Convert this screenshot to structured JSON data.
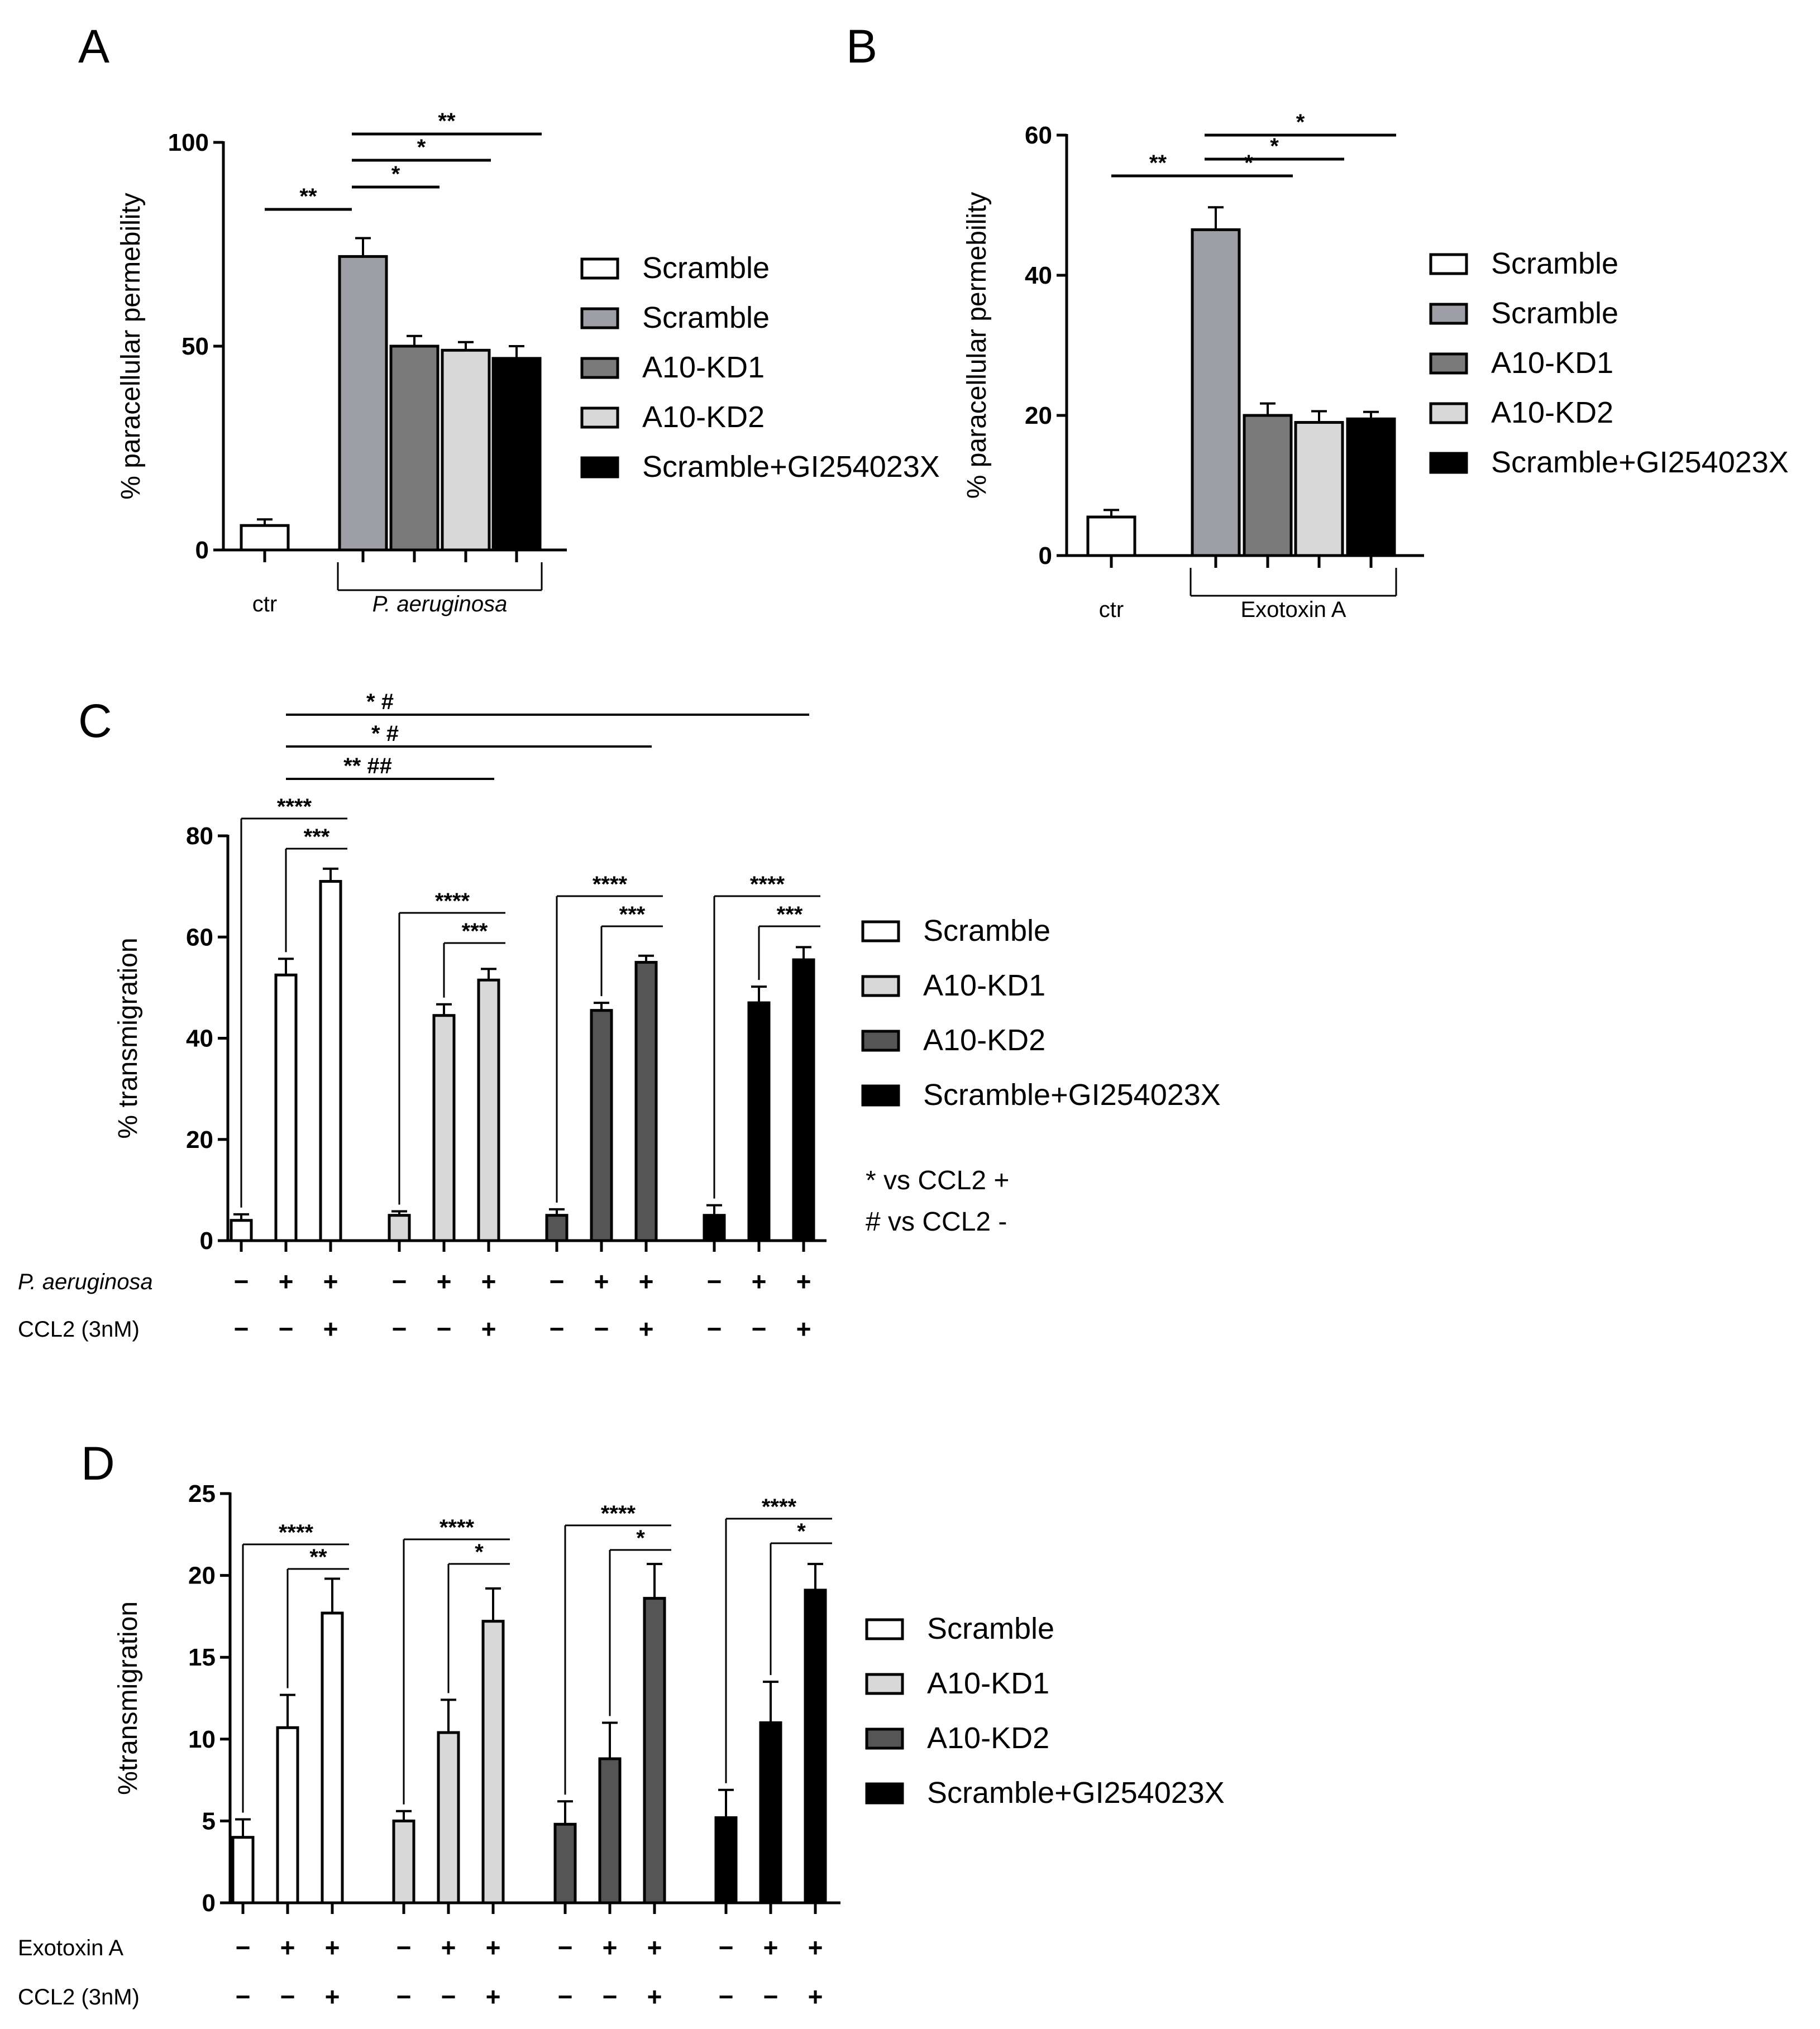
{
  "colors": {
    "scramble_ctrl": "#ffffff",
    "scramble": "#9e9ea6",
    "kd1": "#7a7a7a",
    "kd2": "#d8d8d8",
    "gi": "#000000",
    "kd1_c": "#d8d8d8",
    "kd2_c": "#555555"
  },
  "chart_data": [
    {
      "panel": "A",
      "type": "bar",
      "ylabel": "% paracellular permebility",
      "ylim": [
        0,
        100
      ],
      "yticks": [
        0,
        50,
        100
      ],
      "groups": [
        {
          "label": "ctr",
          "italic": false
        },
        {
          "label": "P. aeruginosa",
          "italic": true
        }
      ],
      "bars": [
        {
          "series": "Scramble",
          "group": 0,
          "value": 6,
          "error": 1.5,
          "color": "#ffffff"
        },
        {
          "series": "Scramble",
          "group": 1,
          "value": 72,
          "error": 4.5,
          "color": "#9e9ea6"
        },
        {
          "series": "A10-KD1",
          "group": 1,
          "value": 50,
          "error": 2.5,
          "color": "#7a7a7a"
        },
        {
          "series": "A10-KD2",
          "group": 1,
          "value": 49,
          "error": 2,
          "color": "#d8d8d8"
        },
        {
          "series": "Scramble+GI254023X",
          "group": 1,
          "value": 47,
          "error": 3,
          "color": "#000000"
        }
      ],
      "legend": [
        "Scramble",
        "Scramble",
        "A10-KD1",
        "A10-KD2",
        "Scramble+GI254023X"
      ],
      "significance": [
        {
          "from": 0,
          "to": 1,
          "label": "**"
        },
        {
          "from": 1,
          "to": 2,
          "label": "*"
        },
        {
          "from": 1,
          "to": 3,
          "label": "*"
        },
        {
          "from": 1,
          "to": 4,
          "label": "**"
        }
      ]
    },
    {
      "panel": "B",
      "type": "bar",
      "ylabel": "% paracellular permebility",
      "ylim": [
        0,
        60
      ],
      "yticks": [
        0,
        20,
        40,
        60
      ],
      "groups": [
        {
          "label": "ctr",
          "italic": false
        },
        {
          "label": "Exotoxin A",
          "italic": false
        }
      ],
      "bars": [
        {
          "series": "Scramble",
          "group": 0,
          "value": 5.5,
          "error": 1,
          "color": "#ffffff"
        },
        {
          "series": "Scramble",
          "group": 1,
          "value": 46.5,
          "error": 3.2,
          "color": "#9e9ea6"
        },
        {
          "series": "A10-KD1",
          "group": 1,
          "value": 20,
          "error": 1.7,
          "color": "#7a7a7a"
        },
        {
          "series": "A10-KD2",
          "group": 1,
          "value": 19,
          "error": 1.6,
          "color": "#d8d8d8"
        },
        {
          "series": "Scramble+GI254023X",
          "group": 1,
          "value": 19.5,
          "error": 1,
          "color": "#000000"
        }
      ],
      "legend": [
        "Scramble",
        "Scramble",
        "A10-KD1",
        "A10-KD2",
        "Scramble+GI254023X"
      ],
      "significance": [
        {
          "from": 0,
          "to": 1,
          "label": "**"
        },
        {
          "from": 1,
          "to": 2,
          "label": "*"
        },
        {
          "from": 1,
          "to": 3,
          "label": "*"
        },
        {
          "from": 1,
          "to": 4,
          "label": "*"
        }
      ]
    },
    {
      "panel": "C",
      "type": "bar",
      "ylabel": "%  transmigration",
      "ylim": [
        0,
        80
      ],
      "yticks": [
        0,
        20,
        40,
        60,
        80
      ],
      "series": [
        {
          "name": "Scramble",
          "color": "#ffffff",
          "values": [
            4,
            52.5,
            71
          ],
          "errors": [
            1.2,
            3.2,
            2.5
          ]
        },
        {
          "name": "A10-KD1",
          "color": "#d8d8d8",
          "values": [
            5,
            44.5,
            51.5
          ],
          "errors": [
            0.8,
            2.2,
            2.2
          ]
        },
        {
          "name": "A10-KD2",
          "color": "#555555",
          "values": [
            5,
            45.5,
            55
          ],
          "errors": [
            1.2,
            1.5,
            1.3
          ]
        },
        {
          "name": "Scramble+GI254023X",
          "color": "#000000",
          "values": [
            5,
            47,
            55.5
          ],
          "errors": [
            2,
            3.2,
            2.5
          ]
        }
      ],
      "conditions": [
        {
          "label": "P. aeruginosa",
          "italic": true,
          "signs": [
            "−",
            "+",
            "+"
          ]
        },
        {
          "label": "CCL2 (3nM)",
          "italic": false,
          "signs": [
            "−",
            "−",
            "+"
          ]
        }
      ],
      "notes": [
        "* vs CCL2 +",
        "# vs CCL2 -"
      ],
      "group_brackets": [
        {
          "label": "****",
          "from": 0,
          "to": 2
        },
        {
          "label": "***",
          "from": 1,
          "to": 2
        }
      ],
      "cross_brackets": [
        {
          "label": "** ##",
          "to_group": 1
        },
        {
          "label": "* #",
          "to_group": 2
        },
        {
          "label": "* #",
          "to_group": 3
        }
      ]
    },
    {
      "panel": "D",
      "type": "bar",
      "ylabel": "%transmigration",
      "ylim": [
        0,
        25
      ],
      "yticks": [
        0,
        5,
        10,
        15,
        20,
        25
      ],
      "series": [
        {
          "name": "Scramble",
          "color": "#ffffff",
          "values": [
            4,
            10.7,
            17.7
          ],
          "errors": [
            1.1,
            2,
            2.1
          ]
        },
        {
          "name": "A10-KD1",
          "color": "#d8d8d8",
          "values": [
            5,
            10.4,
            17.2
          ],
          "errors": [
            0.6,
            2,
            2
          ]
        },
        {
          "name": "A10-KD2",
          "color": "#555555",
          "values": [
            4.8,
            8.8,
            18.6
          ],
          "errors": [
            1.4,
            2.2,
            2.1
          ]
        },
        {
          "name": "Scramble+GI254023X",
          "color": "#000000",
          "values": [
            5.2,
            11,
            19.1
          ],
          "errors": [
            1.7,
            2.5,
            1.6
          ]
        }
      ],
      "conditions": [
        {
          "label": "Exotoxin A",
          "italic": false,
          "signs": [
            "−",
            "+",
            "+"
          ]
        },
        {
          "label": "CCL2 (3nM)",
          "italic": false,
          "signs": [
            "−",
            "−",
            "+"
          ]
        }
      ],
      "group_brackets_by_series": [
        [
          {
            "label": "****",
            "from": 0,
            "to": 2
          },
          {
            "label": "**",
            "from": 1,
            "to": 2
          }
        ],
        [
          {
            "label": "****",
            "from": 0,
            "to": 2
          },
          {
            "label": "*",
            "from": 1,
            "to": 2
          }
        ],
        [
          {
            "label": "****",
            "from": 0,
            "to": 2
          },
          {
            "label": "*",
            "from": 1,
            "to": 2
          }
        ],
        [
          {
            "label": "****",
            "from": 0,
            "to": 2
          },
          {
            "label": "*",
            "from": 1,
            "to": 2
          }
        ]
      ]
    }
  ]
}
